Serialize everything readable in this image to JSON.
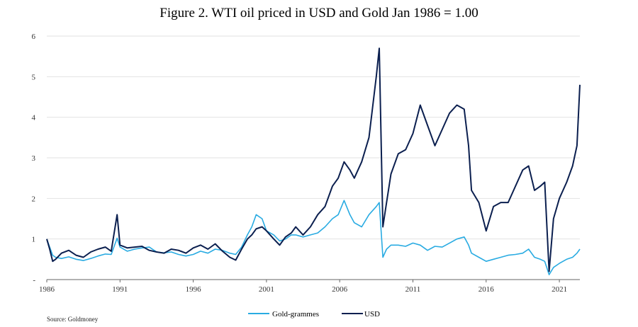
{
  "chart_data": {
    "type": "line",
    "title": "Figure 2. WTI oil priced in USD and Gold Jan 1986 = 1.00",
    "xlabel": "",
    "ylabel": "",
    "x_tick_labels": [
      "1986",
      "1991",
      "1996",
      "2001",
      "2006",
      "2011",
      "2016",
      "2021"
    ],
    "y_tick_labels": [
      "-",
      "1",
      "2",
      "3",
      "4",
      "5",
      "6"
    ],
    "xlim": [
      1986.0,
      2022.4
    ],
    "ylim": [
      0,
      6
    ],
    "grid": "horizontal",
    "legend_position": "bottom-center",
    "series": [
      {
        "name": "Gold-grammes",
        "color": "#29ABE2",
        "x": [
          1986.0,
          1986.2,
          1986.4,
          1986.6,
          1987.0,
          1987.5,
          1988.0,
          1988.5,
          1989.0,
          1989.5,
          1990.0,
          1990.4,
          1990.8,
          1991.0,
          1991.5,
          1992.0,
          1992.5,
          1993.0,
          1993.5,
          1994.0,
          1994.5,
          1995.0,
          1995.5,
          1996.0,
          1996.5,
          1997.0,
          1997.5,
          1998.0,
          1998.5,
          1998.9,
          1999.3,
          1999.7,
          2000.0,
          2000.3,
          2000.7,
          2001.0,
          2001.5,
          2001.9,
          2002.3,
          2002.7,
          2003.0,
          2003.5,
          2004.0,
          2004.5,
          2005.0,
          2005.5,
          2005.9,
          2006.3,
          2006.7,
          2007.0,
          2007.5,
          2008.0,
          2008.5,
          2008.7,
          2008.95,
          2009.2,
          2009.5,
          2010.0,
          2010.5,
          2011.0,
          2011.5,
          2012.0,
          2012.5,
          2013.0,
          2013.5,
          2014.0,
          2014.5,
          2014.8,
          2015.0,
          2015.5,
          2016.0,
          2016.5,
          2017.0,
          2017.5,
          2018.0,
          2018.5,
          2018.9,
          2019.3,
          2019.7,
          2020.0,
          2020.3,
          2020.6,
          2021.0,
          2021.5,
          2021.9,
          2022.2,
          2022.4
        ],
        "values": [
          1.0,
          0.8,
          0.6,
          0.55,
          0.52,
          0.56,
          0.5,
          0.47,
          0.52,
          0.58,
          0.63,
          0.62,
          1.02,
          0.8,
          0.7,
          0.75,
          0.78,
          0.8,
          0.68,
          0.66,
          0.68,
          0.62,
          0.58,
          0.62,
          0.7,
          0.65,
          0.75,
          0.72,
          0.65,
          0.62,
          0.8,
          1.1,
          1.3,
          1.6,
          1.5,
          1.2,
          1.1,
          0.95,
          1.0,
          1.1,
          1.1,
          1.05,
          1.1,
          1.15,
          1.3,
          1.5,
          1.6,
          1.95,
          1.6,
          1.4,
          1.3,
          1.6,
          1.8,
          1.9,
          0.55,
          0.75,
          0.85,
          0.85,
          0.82,
          0.9,
          0.85,
          0.72,
          0.82,
          0.8,
          0.9,
          1.0,
          1.05,
          0.85,
          0.65,
          0.55,
          0.45,
          0.5,
          0.55,
          0.6,
          0.62,
          0.65,
          0.75,
          0.55,
          0.5,
          0.45,
          0.12,
          0.3,
          0.4,
          0.5,
          0.55,
          0.65,
          0.75
        ]
      },
      {
        "name": "USD",
        "color": "#0B1F4F",
        "x": [
          1986.0,
          1986.2,
          1986.4,
          1986.6,
          1987.0,
          1987.5,
          1988.0,
          1988.5,
          1989.0,
          1989.5,
          1990.0,
          1990.4,
          1990.8,
          1991.0,
          1991.5,
          1992.0,
          1992.5,
          1993.0,
          1993.5,
          1994.0,
          1994.5,
          1995.0,
          1995.5,
          1996.0,
          1996.5,
          1997.0,
          1997.5,
          1998.0,
          1998.5,
          1998.9,
          1999.3,
          1999.7,
          2000.0,
          2000.3,
          2000.7,
          2001.0,
          2001.5,
          2001.9,
          2002.3,
          2002.7,
          2003.0,
          2003.5,
          2004.0,
          2004.5,
          2005.0,
          2005.5,
          2005.9,
          2006.3,
          2006.7,
          2007.0,
          2007.5,
          2008.0,
          2008.5,
          2008.7,
          2008.95,
          2009.2,
          2009.5,
          2010.0,
          2010.5,
          2011.0,
          2011.5,
          2012.0,
          2012.5,
          2013.0,
          2013.5,
          2014.0,
          2014.5,
          2014.8,
          2015.0,
          2015.5,
          2016.0,
          2016.5,
          2017.0,
          2017.5,
          2018.0,
          2018.5,
          2018.9,
          2019.3,
          2019.7,
          2020.0,
          2020.3,
          2020.6,
          2021.0,
          2021.5,
          2021.9,
          2022.2,
          2022.4
        ],
        "values": [
          1.0,
          0.75,
          0.45,
          0.5,
          0.65,
          0.72,
          0.6,
          0.55,
          0.68,
          0.75,
          0.8,
          0.7,
          1.6,
          0.85,
          0.78,
          0.8,
          0.82,
          0.72,
          0.68,
          0.65,
          0.75,
          0.72,
          0.65,
          0.78,
          0.85,
          0.75,
          0.88,
          0.7,
          0.55,
          0.48,
          0.75,
          1.0,
          1.1,
          1.25,
          1.3,
          1.2,
          1.0,
          0.85,
          1.05,
          1.15,
          1.3,
          1.1,
          1.3,
          1.6,
          1.8,
          2.3,
          2.5,
          2.9,
          2.7,
          2.5,
          2.9,
          3.5,
          5.0,
          5.7,
          1.3,
          1.9,
          2.6,
          3.1,
          3.2,
          3.6,
          4.3,
          3.8,
          3.3,
          3.7,
          4.1,
          4.3,
          4.2,
          3.3,
          2.2,
          1.9,
          1.2,
          1.8,
          1.9,
          1.9,
          2.3,
          2.7,
          2.8,
          2.2,
          2.3,
          2.4,
          0.2,
          1.5,
          2.0,
          2.4,
          2.8,
          3.3,
          4.8
        ]
      }
    ]
  },
  "source_note": "Source: Goldmoney"
}
